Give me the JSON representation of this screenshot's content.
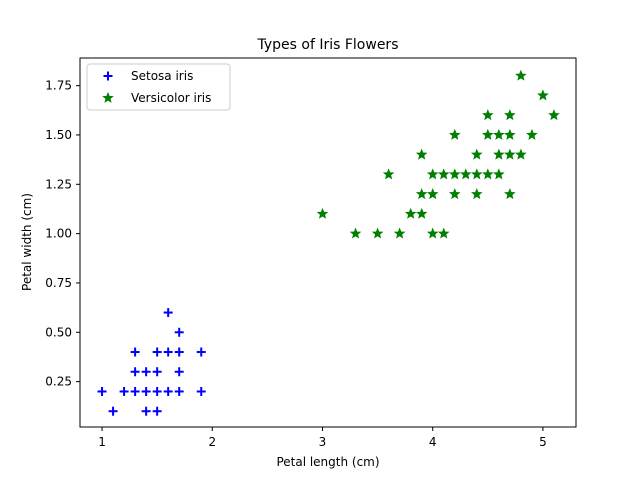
{
  "chart_data": {
    "type": "scatter",
    "title": "Types of Iris Flowers",
    "xlabel": "Petal length (cm)",
    "ylabel": "Petal width (cm)",
    "xlim": [
      0.8,
      5.3
    ],
    "ylim": [
      0.02,
      1.89
    ],
    "xticks": [
      1,
      2,
      3,
      4,
      5
    ],
    "xtick_labels": [
      "1",
      "2",
      "3",
      "4",
      "5"
    ],
    "yticks": [
      0.25,
      0.5,
      0.75,
      1.0,
      1.25,
      1.5,
      1.75
    ],
    "ytick_labels": [
      "0.25",
      "0.50",
      "0.75",
      "1.00",
      "1.25",
      "1.50",
      "1.75"
    ],
    "grid": false,
    "legend": "top-left",
    "series": [
      {
        "name": "Setosa iris",
        "marker": "plus",
        "color": "#0000ff",
        "points": [
          [
            1.0,
            0.2
          ],
          [
            1.1,
            0.1
          ],
          [
            1.2,
            0.2
          ],
          [
            1.3,
            0.2
          ],
          [
            1.3,
            0.3
          ],
          [
            1.3,
            0.4
          ],
          [
            1.4,
            0.1
          ],
          [
            1.4,
            0.2
          ],
          [
            1.4,
            0.3
          ],
          [
            1.5,
            0.1
          ],
          [
            1.5,
            0.2
          ],
          [
            1.5,
            0.3
          ],
          [
            1.5,
            0.4
          ],
          [
            1.6,
            0.2
          ],
          [
            1.6,
            0.4
          ],
          [
            1.6,
            0.6
          ],
          [
            1.7,
            0.2
          ],
          [
            1.7,
            0.3
          ],
          [
            1.7,
            0.4
          ],
          [
            1.7,
            0.5
          ],
          [
            1.9,
            0.2
          ],
          [
            1.9,
            0.4
          ]
        ]
      },
      {
        "name": "Versicolor iris",
        "marker": "star",
        "color": "#008000",
        "points": [
          [
            3.0,
            1.1
          ],
          [
            3.3,
            1.0
          ],
          [
            3.5,
            1.0
          ],
          [
            3.6,
            1.3
          ],
          [
            3.7,
            1.0
          ],
          [
            3.8,
            1.1
          ],
          [
            3.9,
            1.1
          ],
          [
            3.9,
            1.2
          ],
          [
            3.9,
            1.4
          ],
          [
            4.0,
            1.0
          ],
          [
            4.0,
            1.2
          ],
          [
            4.0,
            1.3
          ],
          [
            4.1,
            1.0
          ],
          [
            4.1,
            1.3
          ],
          [
            4.2,
            1.2
          ],
          [
            4.2,
            1.3
          ],
          [
            4.2,
            1.5
          ],
          [
            4.3,
            1.3
          ],
          [
            4.4,
            1.2
          ],
          [
            4.4,
            1.3
          ],
          [
            4.4,
            1.4
          ],
          [
            4.5,
            1.3
          ],
          [
            4.5,
            1.5
          ],
          [
            4.5,
            1.6
          ],
          [
            4.6,
            1.3
          ],
          [
            4.6,
            1.4
          ],
          [
            4.6,
            1.5
          ],
          [
            4.7,
            1.2
          ],
          [
            4.7,
            1.4
          ],
          [
            4.7,
            1.5
          ],
          [
            4.7,
            1.6
          ],
          [
            4.8,
            1.4
          ],
          [
            4.8,
            1.8
          ],
          [
            4.9,
            1.5
          ],
          [
            5.0,
            1.7
          ],
          [
            5.1,
            1.6
          ]
        ]
      }
    ]
  }
}
